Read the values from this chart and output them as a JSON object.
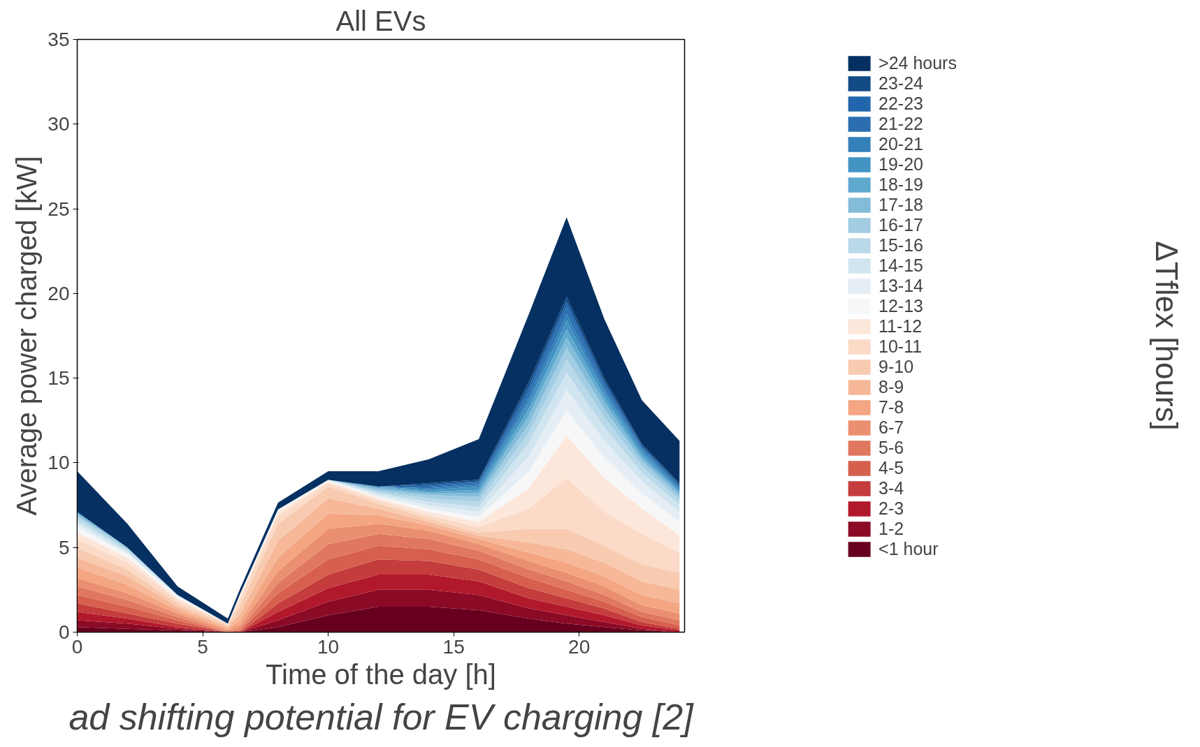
{
  "chart_data": {
    "type": "area",
    "stacked": true,
    "title": "All EVs",
    "xlabel": "Time of the day [h]",
    "ylabel": "Average power charged [kW]",
    "legend_title": "ΔTflex [hours]",
    "legend": "right",
    "grid": false,
    "annotations": [
      "ad shifting potential for EV charging [2]"
    ],
    "x": [
      0,
      2,
      4,
      6,
      6.5,
      8,
      10,
      12,
      14,
      16,
      18,
      19.5,
      21,
      22.5,
      24
    ],
    "xlim": [
      0,
      24.2
    ],
    "xticks": [
      0,
      5,
      10,
      15,
      20
    ],
    "ylim": [
      0,
      35
    ],
    "yticks": [
      0,
      5,
      10,
      15,
      20,
      25,
      30,
      35
    ],
    "series": [
      {
        "name": "<1 hour",
        "color": "#67001f",
        "values": [
          0.3,
          0.2,
          0.1,
          0,
          0,
          0.3,
          1.0,
          1.5,
          1.5,
          1.3,
          0.8,
          0.5,
          0.3,
          0.1,
          0
        ]
      },
      {
        "name": "1-2",
        "color": "#8b0a26",
        "values": [
          0.4,
          0.3,
          0.1,
          0,
          0,
          0.4,
          0.8,
          1.0,
          1.0,
          0.9,
          0.6,
          0.5,
          0.3,
          0.1,
          0
        ]
      },
      {
        "name": "2-3",
        "color": "#b2182b",
        "values": [
          0.5,
          0.3,
          0.1,
          0,
          0,
          0.5,
          0.8,
          0.9,
          0.9,
          0.8,
          0.6,
          0.5,
          0.4,
          0.2,
          0.1
        ]
      },
      {
        "name": "3-4",
        "color": "#c43c3c",
        "values": [
          0.5,
          0.3,
          0.2,
          0,
          0,
          0.5,
          0.8,
          0.9,
          0.8,
          0.7,
          0.6,
          0.5,
          0.4,
          0.2,
          0.1
        ]
      },
      {
        "name": "4-5",
        "color": "#d6604d",
        "values": [
          0.5,
          0.4,
          0.2,
          0,
          0.1,
          0.6,
          0.9,
          0.8,
          0.7,
          0.6,
          0.6,
          0.5,
          0.4,
          0.3,
          0.2
        ]
      },
      {
        "name": "5-6",
        "color": "#e0775f",
        "values": [
          0.5,
          0.4,
          0.2,
          0,
          0.1,
          0.6,
          0.9,
          0.7,
          0.6,
          0.5,
          0.5,
          0.5,
          0.4,
          0.3,
          0.3
        ]
      },
      {
        "name": "6-7",
        "color": "#ea8f70",
        "values": [
          0.5,
          0.4,
          0.2,
          0.1,
          0.2,
          0.7,
          0.9,
          0.6,
          0.5,
          0.4,
          0.5,
          0.5,
          0.5,
          0.4,
          0.4
        ]
      },
      {
        "name": "7-8",
        "color": "#f4a582",
        "values": [
          0.6,
          0.5,
          0.2,
          0.1,
          0.3,
          0.8,
          0.9,
          0.5,
          0.3,
          0.3,
          0.5,
          0.6,
          0.6,
          0.6,
          0.6
        ]
      },
      {
        "name": "8-9",
        "color": "#f6b899",
        "values": [
          0.6,
          0.5,
          0.2,
          0.1,
          0.4,
          1.0,
          0.9,
          0.4,
          0.2,
          0.2,
          0.6,
          0.8,
          0.8,
          0.8,
          0.8
        ]
      },
      {
        "name": "9-10",
        "color": "#f8cbb0",
        "values": [
          0.6,
          0.4,
          0.2,
          0.1,
          0.5,
          1.0,
          0.7,
          0.3,
          0.2,
          0.2,
          0.8,
          1.2,
          1.0,
          1.0,
          1.0
        ]
      },
      {
        "name": "10-11",
        "color": "#fbdac7",
        "values": [
          0.5,
          0.4,
          0.2,
          0.1,
          0.4,
          0.5,
          0.2,
          0.2,
          0.2,
          0.3,
          1.2,
          3.0,
          2.0,
          1.8,
          1.2
        ]
      },
      {
        "name": "11-12",
        "color": "#fde6da",
        "values": [
          0.4,
          0.3,
          0.1,
          0,
          0.2,
          0.2,
          0.1,
          0.1,
          0.2,
          0.3,
          1.2,
          2.5,
          2.0,
          1.5,
          1.0
        ]
      },
      {
        "name": "12-13",
        "color": "#f7f7f7",
        "values": [
          0.3,
          0.2,
          0.1,
          0,
          0.1,
          0.1,
          0.05,
          0.1,
          0.2,
          0.3,
          1.0,
          1.5,
          1.2,
          0.9,
          0.8
        ]
      },
      {
        "name": "13-14",
        "color": "#e4eef4",
        "values": [
          0.2,
          0.1,
          0.1,
          0,
          0,
          0.05,
          0.05,
          0.1,
          0.2,
          0.3,
          0.9,
          1.2,
          1.0,
          0.7,
          0.6
        ]
      },
      {
        "name": "14-15",
        "color": "#d1e5f0",
        "values": [
          0.2,
          0.1,
          0,
          0,
          0,
          0,
          0,
          0.1,
          0.2,
          0.3,
          0.8,
          1.0,
          0.8,
          0.5,
          0.4
        ]
      },
      {
        "name": "15-16",
        "color": "#b9d9ea",
        "values": [
          0.2,
          0.1,
          0,
          0,
          0,
          0,
          0,
          0.1,
          0.2,
          0.3,
          0.6,
          0.8,
          0.6,
          0.4,
          0.3
        ]
      },
      {
        "name": "16-17",
        "color": "#a2cde3",
        "values": [
          0.1,
          0.1,
          0,
          0,
          0,
          0,
          0,
          0.1,
          0.2,
          0.3,
          0.5,
          0.7,
          0.5,
          0.3,
          0.2
        ]
      },
      {
        "name": "17-18",
        "color": "#82bcd9",
        "values": [
          0.1,
          0,
          0,
          0,
          0,
          0,
          0,
          0.1,
          0.1,
          0.2,
          0.5,
          0.6,
          0.4,
          0.2,
          0.2
        ]
      },
      {
        "name": "18-19",
        "color": "#5fa9cf",
        "values": [
          0.1,
          0,
          0,
          0,
          0,
          0,
          0,
          0.1,
          0.1,
          0.2,
          0.4,
          0.5,
          0.3,
          0.2,
          0.1
        ]
      },
      {
        "name": "19-20",
        "color": "#4393c3",
        "values": [
          0,
          0,
          0,
          0,
          0,
          0,
          0,
          0,
          0.1,
          0.2,
          0.4,
          0.5,
          0.3,
          0.2,
          0.1
        ]
      },
      {
        "name": "20-21",
        "color": "#3480b9",
        "values": [
          0,
          0,
          0,
          0,
          0,
          0,
          0,
          0,
          0.1,
          0.1,
          0.3,
          0.4,
          0.2,
          0.1,
          0.1
        ]
      },
      {
        "name": "21-22",
        "color": "#2a6eaf",
        "values": [
          0,
          0,
          0,
          0,
          0,
          0,
          0,
          0,
          0.1,
          0.1,
          0.3,
          0.4,
          0.2,
          0.1,
          0.1
        ]
      },
      {
        "name": "22-23",
        "color": "#2166ac",
        "values": [
          0,
          0,
          0,
          0,
          0,
          0,
          0,
          0,
          0.1,
          0.1,
          0.3,
          0.3,
          0.2,
          0.1,
          0.1
        ]
      },
      {
        "name": "23-24",
        "color": "#134b86",
        "values": [
          0,
          0,
          0,
          0,
          0,
          0,
          0,
          0,
          0.1,
          0.1,
          0.3,
          0.3,
          0.2,
          0.1,
          0.1
        ]
      },
      {
        "name": ">24 hours",
        "color": "#053061",
        "values": [
          2.4,
          1.4,
          0.5,
          0.3,
          0.3,
          0.4,
          0.5,
          0.9,
          1.4,
          2.4,
          4.0,
          4.7,
          3.5,
          2.6,
          2.5
        ]
      }
    ]
  }
}
